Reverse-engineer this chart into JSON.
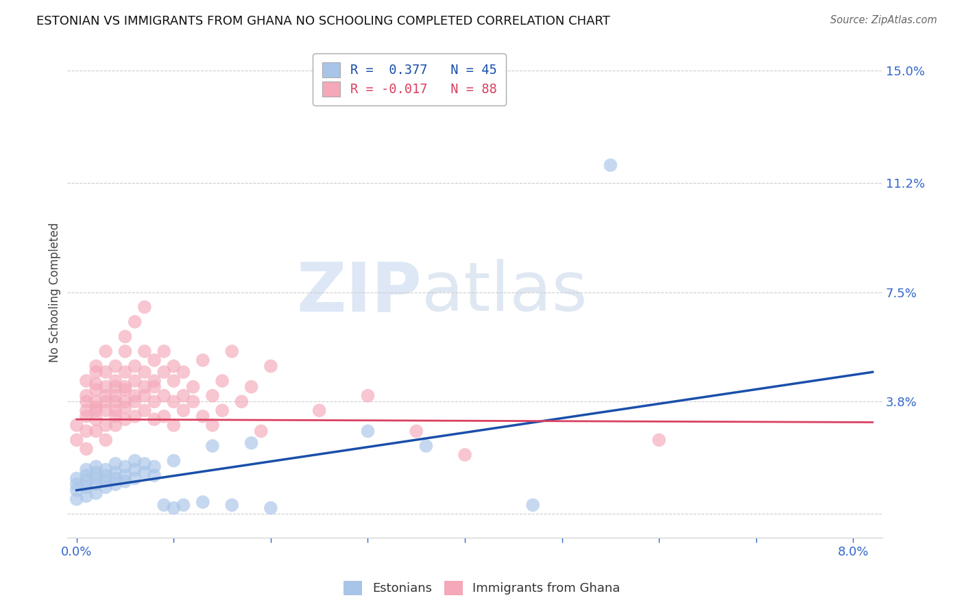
{
  "title": "ESTONIAN VS IMMIGRANTS FROM GHANA NO SCHOOLING COMPLETED CORRELATION CHART",
  "source": "Source: ZipAtlas.com",
  "ylabel": "No Schooling Completed",
  "y_ticks": [
    0.0,
    0.038,
    0.075,
    0.112,
    0.15
  ],
  "y_tick_labels": [
    "",
    "3.8%",
    "7.5%",
    "11.2%",
    "15.0%"
  ],
  "x_ticks": [
    0.0,
    0.01,
    0.02,
    0.03,
    0.04,
    0.05,
    0.06,
    0.07,
    0.08
  ],
  "x_tick_labels": [
    "0.0%",
    "",
    "",
    "",
    "",
    "",
    "",
    "",
    "8.0%"
  ],
  "xlim": [
    -0.001,
    0.083
  ],
  "ylim": [
    -0.008,
    0.158
  ],
  "R_estonian": 0.377,
  "N_estonian": 45,
  "R_ghana": -0.017,
  "N_ghana": 88,
  "color_estonian": "#a8c4e8",
  "color_ghana": "#f4a8b8",
  "line_color_estonian": "#1a4faa",
  "line_color_ghana": "#d94060",
  "watermark_text": "ZIP",
  "watermark_text2": "atlas",
  "background_color": "#ffffff",
  "grid_color": "#cccccc",
  "estonian_line_x": [
    0.0,
    0.082
  ],
  "estonian_line_y": [
    0.008,
    0.048
  ],
  "ghana_line_x": [
    0.0,
    0.082
  ],
  "ghana_line_y": [
    0.032,
    0.031
  ],
  "estonian_points": [
    [
      0.0,
      0.005
    ],
    [
      0.0,
      0.008
    ],
    [
      0.0,
      0.01
    ],
    [
      0.0,
      0.012
    ],
    [
      0.001,
      0.006
    ],
    [
      0.001,
      0.009
    ],
    [
      0.001,
      0.011
    ],
    [
      0.001,
      0.013
    ],
    [
      0.001,
      0.015
    ],
    [
      0.002,
      0.007
    ],
    [
      0.002,
      0.01
    ],
    [
      0.002,
      0.012
    ],
    [
      0.002,
      0.014
    ],
    [
      0.002,
      0.016
    ],
    [
      0.003,
      0.009
    ],
    [
      0.003,
      0.011
    ],
    [
      0.003,
      0.013
    ],
    [
      0.003,
      0.015
    ],
    [
      0.004,
      0.01
    ],
    [
      0.004,
      0.012
    ],
    [
      0.004,
      0.014
    ],
    [
      0.004,
      0.017
    ],
    [
      0.005,
      0.011
    ],
    [
      0.005,
      0.013
    ],
    [
      0.005,
      0.016
    ],
    [
      0.006,
      0.012
    ],
    [
      0.006,
      0.015
    ],
    [
      0.006,
      0.018
    ],
    [
      0.007,
      0.014
    ],
    [
      0.007,
      0.017
    ],
    [
      0.008,
      0.013
    ],
    [
      0.008,
      0.016
    ],
    [
      0.009,
      0.003
    ],
    [
      0.01,
      0.002
    ],
    [
      0.01,
      0.018
    ],
    [
      0.011,
      0.003
    ],
    [
      0.013,
      0.004
    ],
    [
      0.014,
      0.023
    ],
    [
      0.016,
      0.003
    ],
    [
      0.018,
      0.024
    ],
    [
      0.02,
      0.002
    ],
    [
      0.03,
      0.028
    ],
    [
      0.036,
      0.023
    ],
    [
      0.047,
      0.003
    ],
    [
      0.055,
      0.118
    ]
  ],
  "ghana_points": [
    [
      0.0,
      0.03
    ],
    [
      0.0,
      0.025
    ],
    [
      0.001,
      0.035
    ],
    [
      0.001,
      0.04
    ],
    [
      0.001,
      0.028
    ],
    [
      0.001,
      0.045
    ],
    [
      0.001,
      0.033
    ],
    [
      0.001,
      0.038
    ],
    [
      0.001,
      0.022
    ],
    [
      0.002,
      0.036
    ],
    [
      0.002,
      0.042
    ],
    [
      0.002,
      0.032
    ],
    [
      0.002,
      0.048
    ],
    [
      0.002,
      0.038
    ],
    [
      0.002,
      0.028
    ],
    [
      0.002,
      0.044
    ],
    [
      0.002,
      0.035
    ],
    [
      0.002,
      0.05
    ],
    [
      0.003,
      0.038
    ],
    [
      0.003,
      0.043
    ],
    [
      0.003,
      0.03
    ],
    [
      0.003,
      0.048
    ],
    [
      0.003,
      0.035
    ],
    [
      0.003,
      0.055
    ],
    [
      0.003,
      0.04
    ],
    [
      0.003,
      0.025
    ],
    [
      0.004,
      0.04
    ],
    [
      0.004,
      0.035
    ],
    [
      0.004,
      0.045
    ],
    [
      0.004,
      0.03
    ],
    [
      0.004,
      0.05
    ],
    [
      0.004,
      0.038
    ],
    [
      0.004,
      0.043
    ],
    [
      0.004,
      0.033
    ],
    [
      0.005,
      0.042
    ],
    [
      0.005,
      0.036
    ],
    [
      0.005,
      0.048
    ],
    [
      0.005,
      0.032
    ],
    [
      0.005,
      0.055
    ],
    [
      0.005,
      0.038
    ],
    [
      0.005,
      0.06
    ],
    [
      0.005,
      0.043
    ],
    [
      0.006,
      0.038
    ],
    [
      0.006,
      0.045
    ],
    [
      0.006,
      0.033
    ],
    [
      0.006,
      0.05
    ],
    [
      0.006,
      0.04
    ],
    [
      0.006,
      0.065
    ],
    [
      0.007,
      0.043
    ],
    [
      0.007,
      0.048
    ],
    [
      0.007,
      0.035
    ],
    [
      0.007,
      0.055
    ],
    [
      0.007,
      0.04
    ],
    [
      0.007,
      0.07
    ],
    [
      0.008,
      0.038
    ],
    [
      0.008,
      0.045
    ],
    [
      0.008,
      0.032
    ],
    [
      0.008,
      0.052
    ],
    [
      0.008,
      0.043
    ],
    [
      0.009,
      0.04
    ],
    [
      0.009,
      0.048
    ],
    [
      0.009,
      0.033
    ],
    [
      0.009,
      0.055
    ],
    [
      0.01,
      0.038
    ],
    [
      0.01,
      0.045
    ],
    [
      0.01,
      0.03
    ],
    [
      0.01,
      0.05
    ],
    [
      0.011,
      0.04
    ],
    [
      0.011,
      0.048
    ],
    [
      0.011,
      0.035
    ],
    [
      0.012,
      0.043
    ],
    [
      0.012,
      0.038
    ],
    [
      0.013,
      0.052
    ],
    [
      0.013,
      0.033
    ],
    [
      0.014,
      0.04
    ],
    [
      0.014,
      0.03
    ],
    [
      0.015,
      0.045
    ],
    [
      0.015,
      0.035
    ],
    [
      0.016,
      0.055
    ],
    [
      0.017,
      0.038
    ],
    [
      0.018,
      0.043
    ],
    [
      0.019,
      0.028
    ],
    [
      0.02,
      0.05
    ],
    [
      0.025,
      0.035
    ],
    [
      0.03,
      0.04
    ],
    [
      0.035,
      0.028
    ],
    [
      0.04,
      0.02
    ],
    [
      0.06,
      0.025
    ]
  ]
}
